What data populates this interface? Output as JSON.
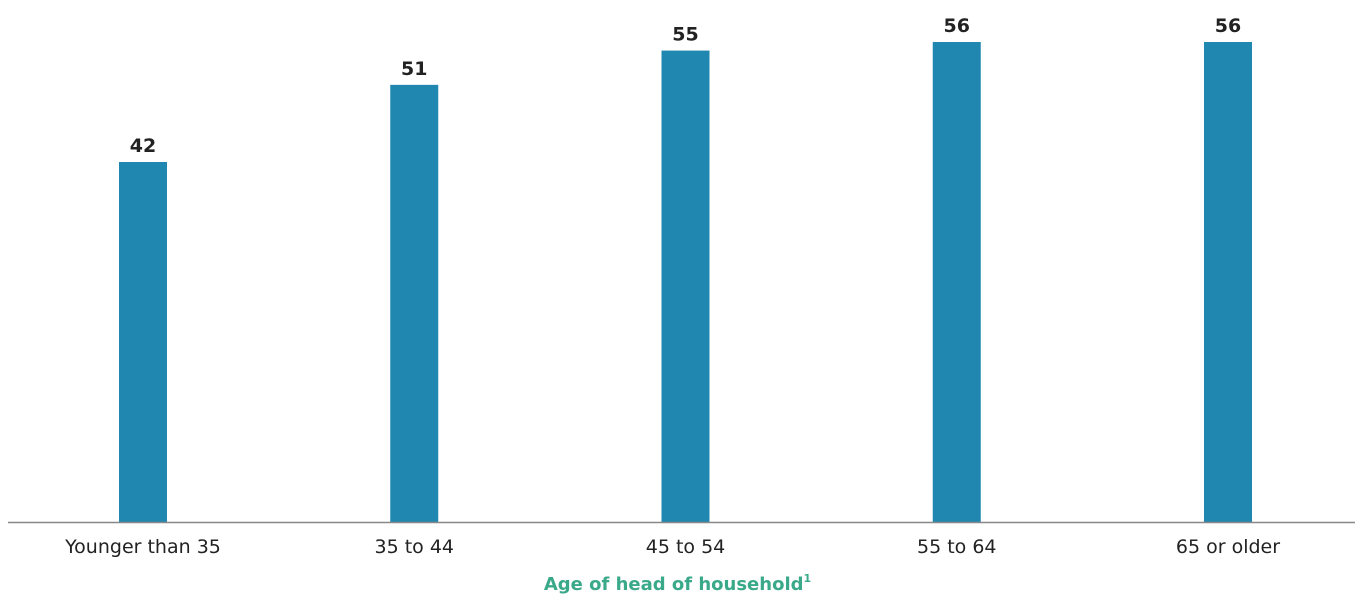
{
  "colors": {
    "bar": "#1f87b0",
    "axis": "#888888",
    "xlabel": "#3aa98a"
  },
  "chart_data": {
    "type": "bar",
    "title": "",
    "categories": [
      "Younger than 35",
      "35 to 44",
      "45 to 54",
      "55 to 64",
      "65 or older"
    ],
    "values": [
      42,
      51,
      55,
      56,
      56
    ],
    "xlabel": "Age of head of household",
    "xlabel_footnote": "1",
    "ylabel": "",
    "ylim": [
      0,
      56
    ],
    "grid": false,
    "data_labels": true
  }
}
